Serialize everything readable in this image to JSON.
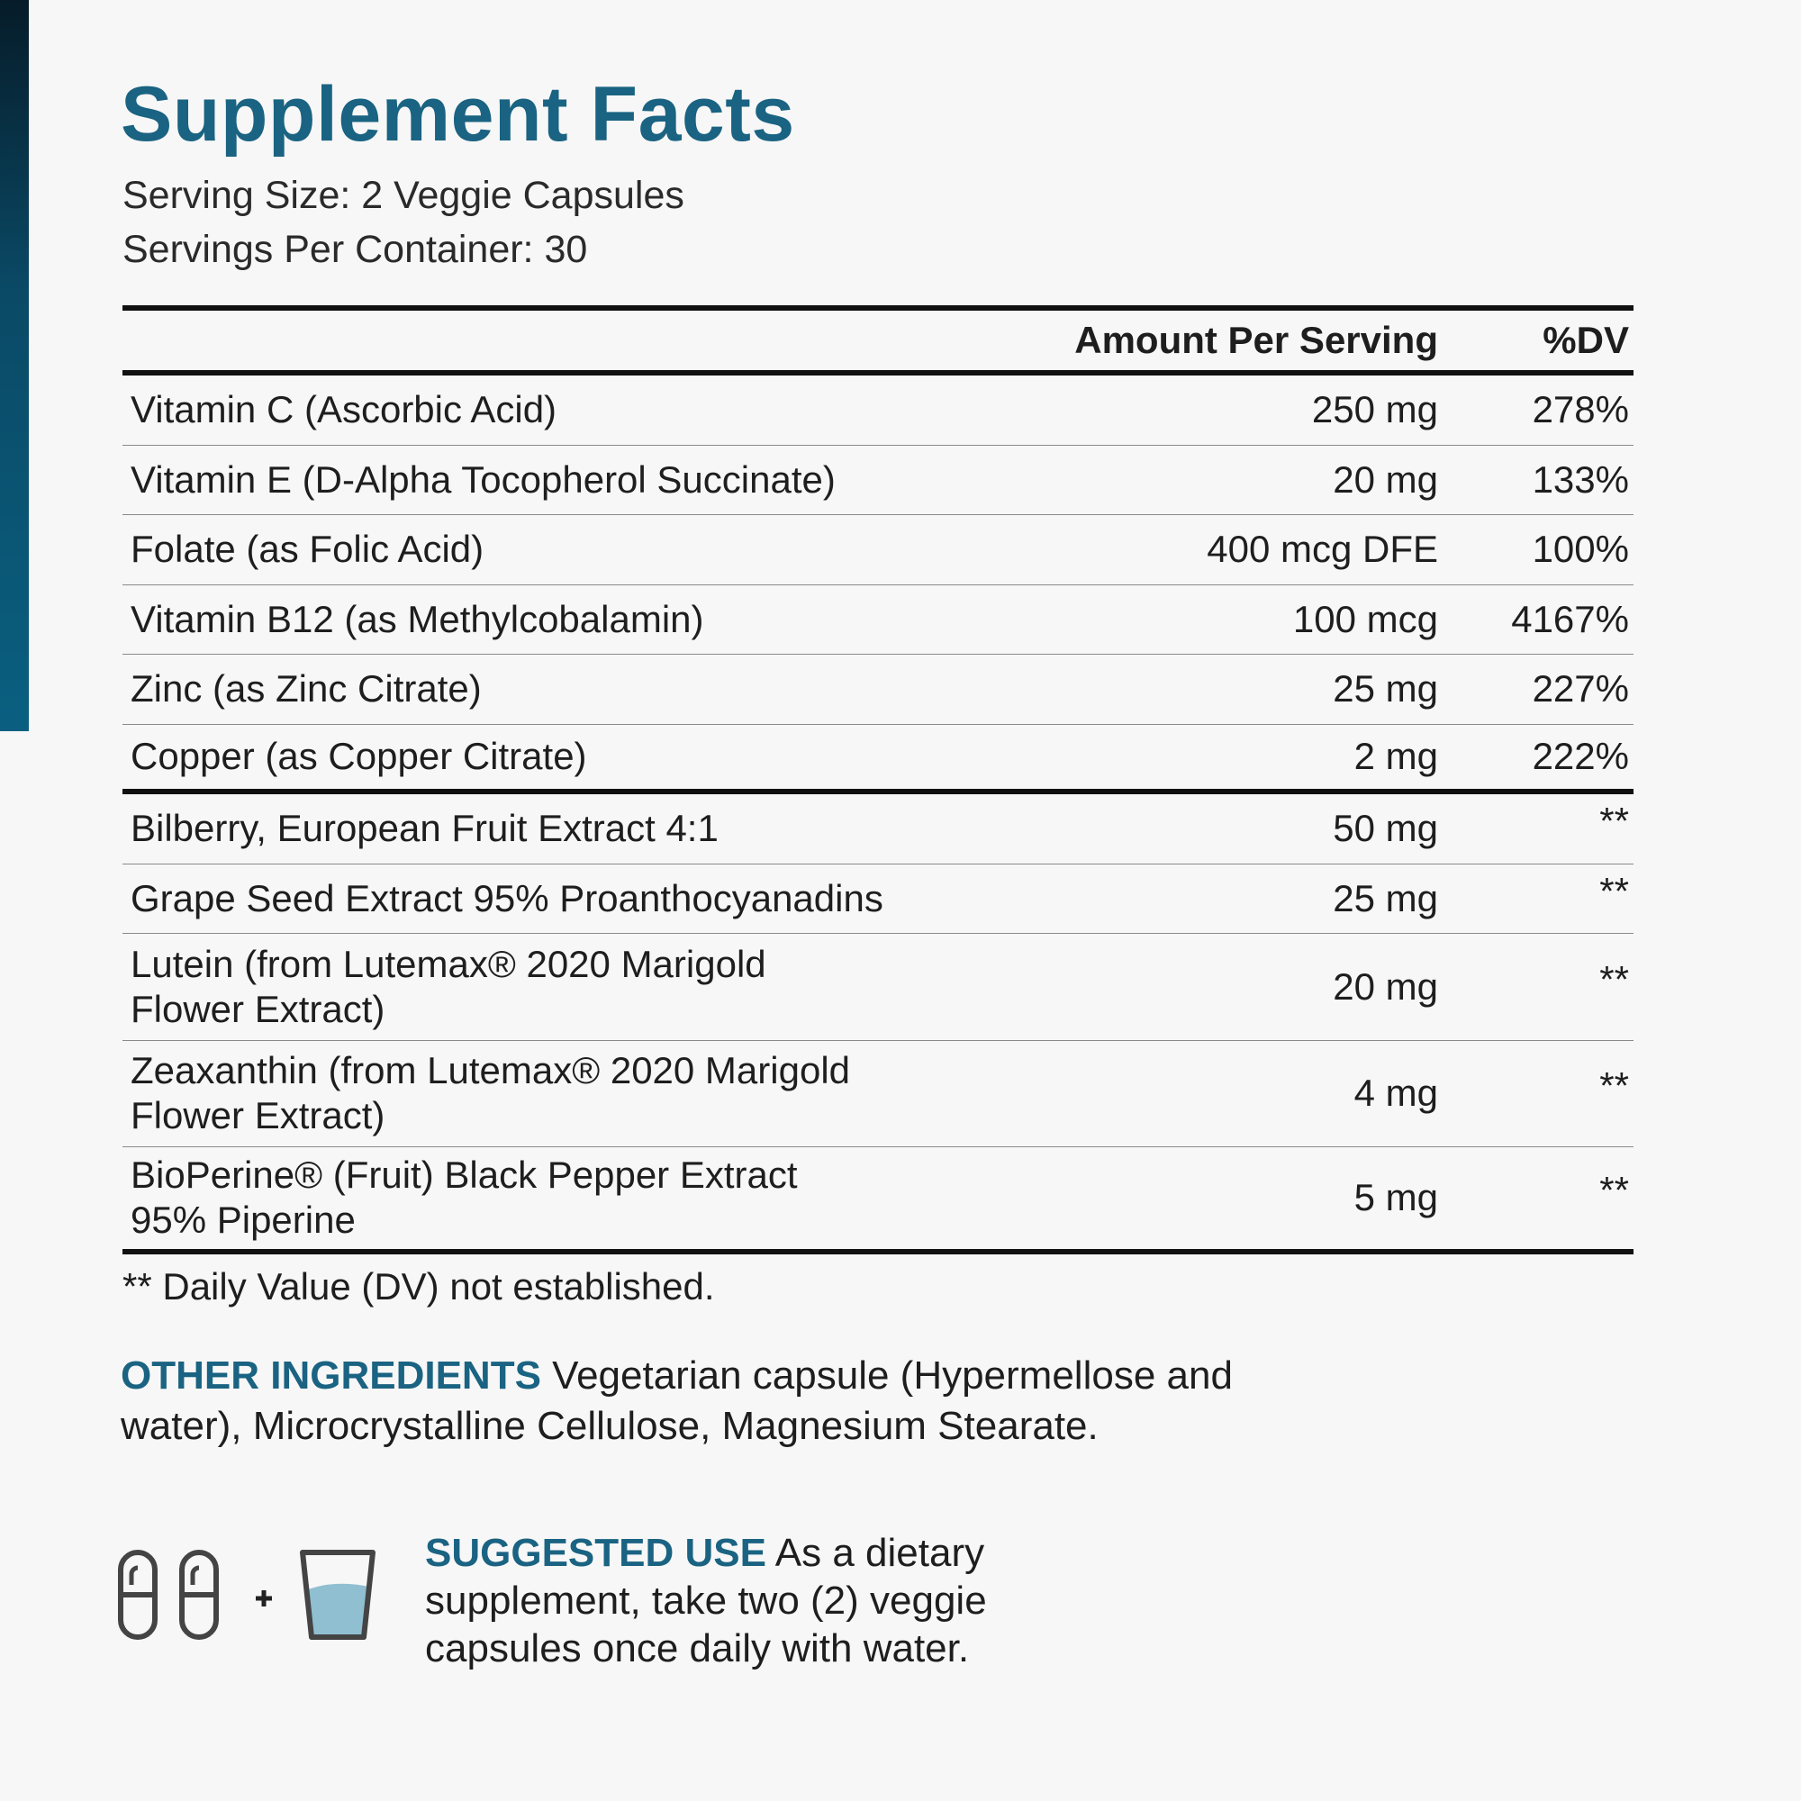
{
  "header": {
    "title": "Supplement Facts",
    "serving_size": "Serving Size: 2 Veggie Capsules",
    "servings_per_container": "Servings Per Container: 30"
  },
  "table": {
    "columns": [
      "Amount Per Serving",
      "%DV"
    ],
    "rows": [
      {
        "name": [
          "Vitamin C (Ascorbic Acid)"
        ],
        "amount": "250 mg",
        "dv": "278%"
      },
      {
        "name": [
          "Vitamin E (D-Alpha Tocopherol Succinate)"
        ],
        "amount": "20 mg",
        "dv": "133%"
      },
      {
        "name": [
          "Folate (as Folic Acid)"
        ],
        "amount": "400 mcg DFE",
        "dv": "100%"
      },
      {
        "name": [
          "Vitamin B12 (as Methylcobalamin)"
        ],
        "amount": "100 mcg",
        "dv": "4167%"
      },
      {
        "name": [
          "Zinc (as Zinc Citrate)"
        ],
        "amount": "25 mg",
        "dv": "227%"
      },
      {
        "name": [
          "Copper (as Copper Citrate)"
        ],
        "amount": "2 mg",
        "dv": "222%"
      },
      {
        "name": [
          "Bilberry, European Fruit Extract 4:1"
        ],
        "amount": "50 mg",
        "dv": "**"
      },
      {
        "name": [
          "Grape Seed Extract 95% Proanthocyanadins"
        ],
        "amount": "25 mg",
        "dv": "**"
      },
      {
        "name": [
          "Lutein (from Lutemax® 2020 Marigold",
          "Flower Extract)"
        ],
        "amount": "20 mg",
        "dv": "**"
      },
      {
        "name": [
          "Zeaxanthin (from Lutemax® 2020 Marigold",
          "Flower Extract)"
        ],
        "amount": "4 mg",
        "dv": "**"
      },
      {
        "name": [
          "BioPerine® (Fruit) Black Pepper Extract",
          "95% Piperine"
        ],
        "amount": "5 mg",
        "dv": "**"
      }
    ]
  },
  "footnote": "** Daily Value (DV) not established.",
  "other_ingredients": {
    "label": "OTHER INGREDIENTS",
    "text": "Vegetarian capsule (Hypermellose and water), Microcrystalline Cellulose, Magnesium Stearate."
  },
  "suggested_use": {
    "label": "SUGGESTED USE",
    "text": "As a dietary supplement, take two (2) veggie capsules once daily with water."
  }
}
